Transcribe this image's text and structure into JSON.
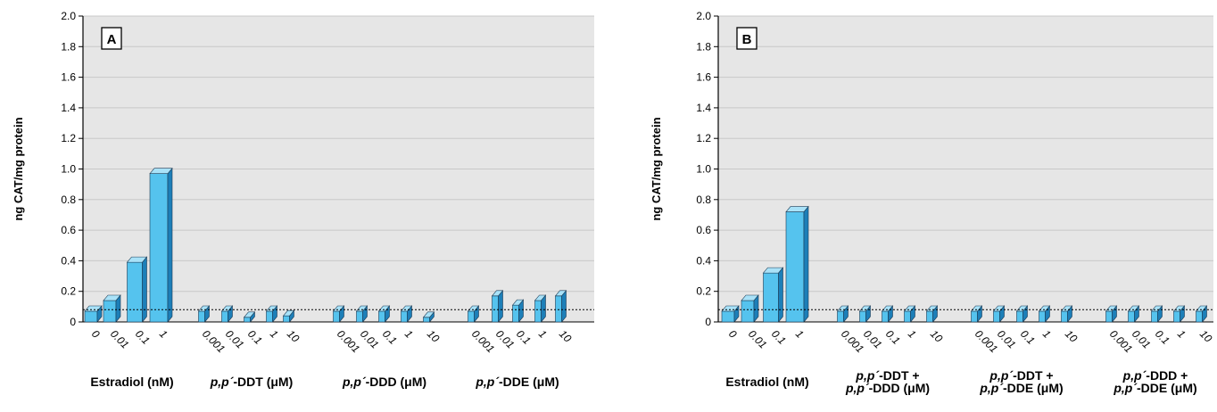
{
  "chart_data": [
    {
      "panel_label": "A",
      "type": "bar",
      "ylabel": "ng CAT/mg protein",
      "ylim": [
        0,
        2.0
      ],
      "yticks": [
        "0",
        "0.2",
        "0.4",
        "0.6",
        "0.8",
        "1.0",
        "1.2",
        "1.4",
        "1.6",
        "1.8",
        "2.0"
      ],
      "grid": true,
      "baseline": 0.08,
      "groups": [
        {
          "name": [
            "Estradiol (nM)"
          ],
          "categories": [
            "0",
            "0.01",
            "0.1",
            "1"
          ],
          "values": [
            0.07,
            0.14,
            0.39,
            0.97
          ]
        },
        {
          "name": [
            "p,p´-DDT (μM)"
          ],
          "categories": [
            "0.001",
            "0.01",
            "0.1",
            "1",
            "10"
          ],
          "values": [
            0.07,
            0.07,
            0.03,
            0.07,
            0.04
          ]
        },
        {
          "name": [
            "p,p´-DDD (μM)"
          ],
          "categories": [
            "0.001",
            "0.01",
            "0.1",
            "1",
            "10"
          ],
          "values": [
            0.07,
            0.07,
            0.07,
            0.07,
            0.03
          ]
        },
        {
          "name": [
            "p,p´-DDE (μM)"
          ],
          "categories": [
            "0.001",
            "0.01",
            "0.1",
            "1",
            "10"
          ],
          "values": [
            0.07,
            0.17,
            0.11,
            0.14,
            0.17
          ]
        }
      ]
    },
    {
      "panel_label": "B",
      "type": "bar",
      "ylabel": "ng CAT/mg protein",
      "ylim": [
        0,
        2.0
      ],
      "yticks": [
        "0",
        "0.2",
        "0.4",
        "0.6",
        "0.8",
        "1.0",
        "1.2",
        "1.4",
        "1.6",
        "1.8",
        "2.0"
      ],
      "grid": true,
      "baseline": 0.08,
      "groups": [
        {
          "name": [
            "Estradiol (nM)"
          ],
          "categories": [
            "0",
            "0.01",
            "0.1",
            "1"
          ],
          "values": [
            0.07,
            0.14,
            0.32,
            0.72
          ]
        },
        {
          "name": [
            "p,p´-DDT +",
            "p,p´-DDD (μM)"
          ],
          "categories": [
            "0.001",
            "0.01",
            "0.1",
            "1",
            "10"
          ],
          "values": [
            0.07,
            0.07,
            0.07,
            0.07,
            0.07
          ]
        },
        {
          "name": [
            "p,p´-DDT +",
            "p,p´-DDE (μM)"
          ],
          "categories": [
            "0.001",
            "0.01",
            "0.1",
            "1",
            "10"
          ],
          "values": [
            0.07,
            0.07,
            0.07,
            0.07,
            0.07
          ]
        },
        {
          "name": [
            "p,p´-DDD +",
            "p,p´-DDE (μM)"
          ],
          "categories": [
            "0.001",
            "0.01",
            "0.1",
            "1",
            "10"
          ],
          "values": [
            0.07,
            0.07,
            0.07,
            0.07,
            0.07
          ]
        }
      ]
    }
  ],
  "colors": {
    "bar_front": "#55c3ee",
    "bar_side": "#1d7fb8",
    "bar_top": "#a9e2f8",
    "bar_outline": "#1b3b55",
    "grid": "#c8c8c8",
    "plot_bg": "#e6e6e6",
    "axis": "#000000",
    "baseline": "#000000"
  }
}
